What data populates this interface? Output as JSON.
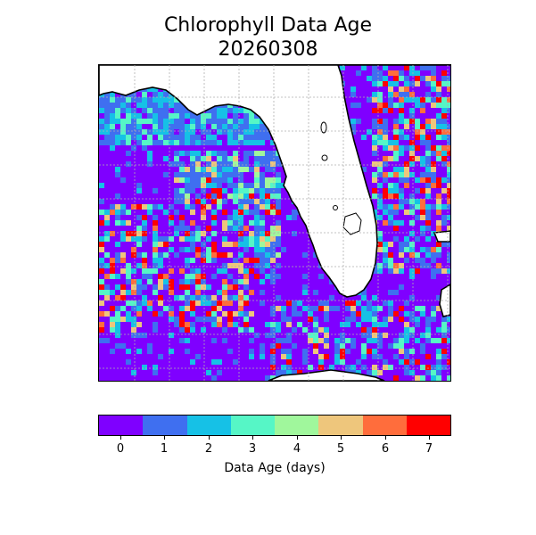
{
  "title": {
    "line1": "Chlorophyll Data Age",
    "line2": "20260308"
  },
  "colorbar": {
    "label": "Data Age (days)",
    "ticks": [
      "0",
      "1",
      "2",
      "3",
      "4",
      "5",
      "6",
      "7"
    ],
    "colors": [
      "#7f00ff",
      "#3f6ff0",
      "#16c1e6",
      "#56f6c6",
      "#a0f79c",
      "#eec67c",
      "#ff6d3c",
      "#ff0000"
    ]
  },
  "map": {
    "land_color": "#ffffff",
    "coast_color": "#000000",
    "grid_color": "#b0b0b0"
  }
}
